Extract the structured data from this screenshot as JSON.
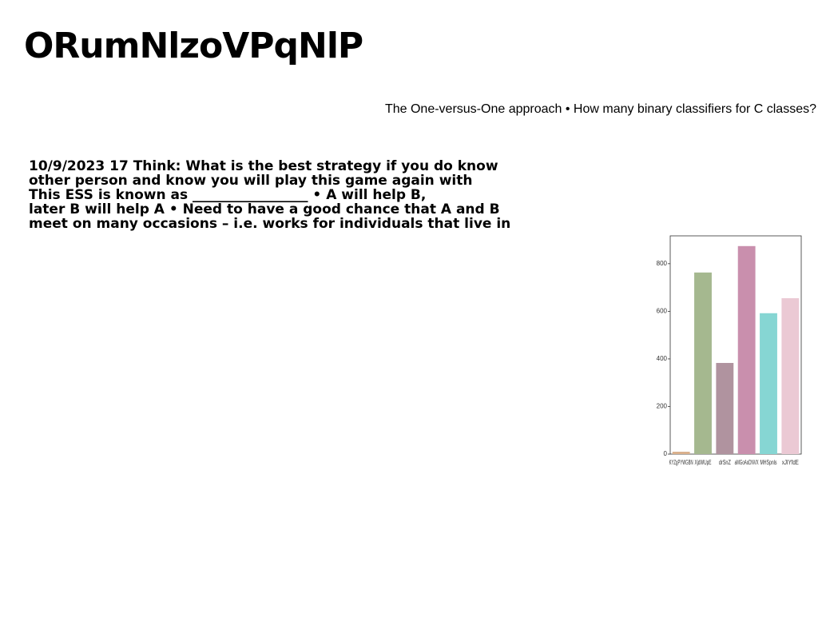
{
  "title": "ORumNlzoVPqNlP",
  "subtitle": "The One-versus-One approach • How many binary classifiers for C classes?",
  "body": [
    "10/9/2023 17 Think: What is the best strategy if you do know",
    "other person and know you will play this game again with",
    "This ESS is known as _________________ • A will help B,",
    "later B will help A • Need to have a good chance that A and B",
    "meet on many occasions – i.e. works for individuals that live in"
  ],
  "chart_data": {
    "type": "bar",
    "categories": [
      "KYZgPYWGBN",
      "XjdWUpE",
      "drSnZ",
      "aMGoAoDNVX",
      "MHSpnls",
      "xJIYfdE"
    ],
    "values": [
      10,
      763,
      383,
      874,
      592,
      655
    ],
    "colors": [
      "#d9b08c",
      "#a5b88f",
      "#b0939f",
      "#c98fad",
      "#86d6d3",
      "#ebc9d4"
    ],
    "ylim": [
      0,
      917
    ],
    "yticks": [
      0,
      200,
      400,
      600,
      800
    ]
  }
}
